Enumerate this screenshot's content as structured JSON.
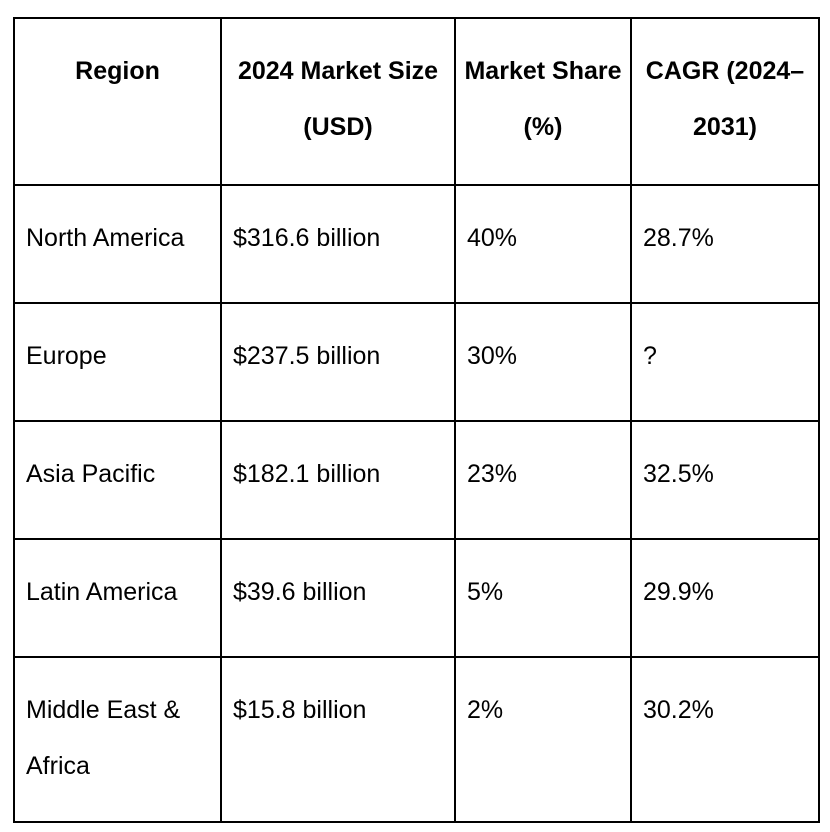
{
  "colors": {
    "background": "#ffffff",
    "border": "#000000",
    "text": "#000000"
  },
  "chart_data": {
    "type": "table",
    "columns": [
      "Region",
      "2024 Market Size (USD)",
      "Market Share (%)",
      "CAGR (2024–2031)"
    ],
    "rows": [
      [
        "North America",
        "$316.6 billion",
        "40%",
        "28.7%"
      ],
      [
        "Europe",
        "$237.5 billion",
        "30%",
        "?"
      ],
      [
        "Asia Pacific",
        "$182.1 billion",
        "23%",
        "32.5%"
      ],
      [
        "Latin America",
        "$39.6 billion",
        "5%",
        "29.9%"
      ],
      [
        "Middle East & Africa",
        "$15.8 billion",
        "2%",
        "30.2%"
      ]
    ],
    "regions": [
      "North America",
      "Europe",
      "Asia Pacific",
      "Latin America",
      "Middle East & Africa"
    ],
    "market_size_billion_usd": [
      316.6,
      237.5,
      182.1,
      39.6,
      15.8
    ],
    "market_share_pct": [
      40,
      30,
      23,
      5,
      2
    ],
    "cagr_pct_2024_2031": [
      28.7,
      null,
      32.5,
      29.9,
      30.2
    ],
    "missing_value_display": "?",
    "missing_value_cell": {
      "row": "Europe",
      "column": "CAGR (2024–2031)"
    }
  }
}
